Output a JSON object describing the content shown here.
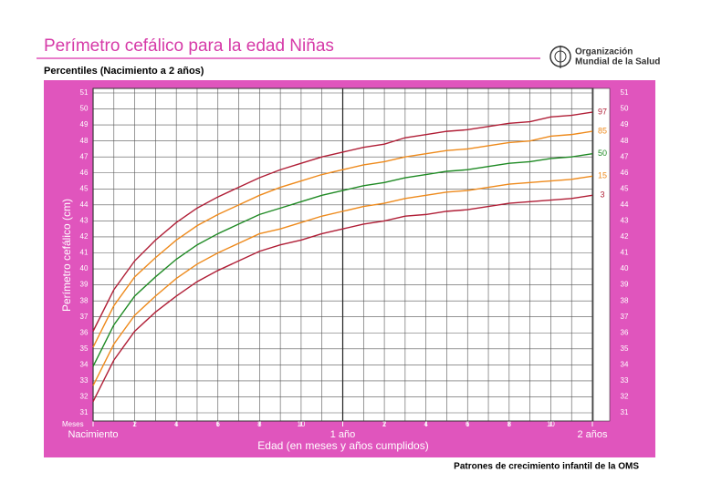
{
  "chart_data": {
    "type": "line",
    "title": "Perímetro cefálico para la edad  Niñas",
    "subtitle": "Percentiles (Nacimiento a 2 años)",
    "organization": [
      "Organización",
      "Mundial de la Salud"
    ],
    "footer": "Patrones de crecimiento infantil de la OMS",
    "x_label": "Edad (en meses y años cumplidos)",
    "x_unit_label": "Meses",
    "y_label": "Perímetro cefálico (cm)",
    "x": [
      0,
      1,
      2,
      3,
      4,
      5,
      6,
      7,
      8,
      9,
      10,
      11,
      12,
      13,
      14,
      15,
      16,
      17,
      18,
      19,
      20,
      21,
      22,
      23,
      24
    ],
    "series": [
      {
        "name": "97",
        "color": "#b01e36",
        "values": [
          36.1,
          38.7,
          40.5,
          41.8,
          42.9,
          43.8,
          44.5,
          45.1,
          45.7,
          46.2,
          46.6,
          47.0,
          47.3,
          47.6,
          47.8,
          48.2,
          48.4,
          48.6,
          48.7,
          48.9,
          49.1,
          49.2,
          49.5,
          49.6,
          49.8
        ]
      },
      {
        "name": "85",
        "color": "#ee8a1c",
        "values": [
          35.1,
          37.7,
          39.5,
          40.7,
          41.8,
          42.7,
          43.4,
          44.0,
          44.6,
          45.1,
          45.5,
          45.9,
          46.2,
          46.5,
          46.7,
          47.0,
          47.2,
          47.4,
          47.5,
          47.7,
          47.9,
          48.0,
          48.3,
          48.4,
          48.6
        ]
      },
      {
        "name": "50",
        "color": "#1f8a24",
        "values": [
          33.9,
          36.5,
          38.3,
          39.5,
          40.6,
          41.5,
          42.2,
          42.8,
          43.4,
          43.8,
          44.2,
          44.6,
          44.9,
          45.2,
          45.4,
          45.7,
          45.9,
          46.1,
          46.2,
          46.4,
          46.6,
          46.7,
          46.9,
          47.0,
          47.2
        ]
      },
      {
        "name": "15",
        "color": "#ee8a1c",
        "values": [
          32.7,
          35.3,
          37.1,
          38.3,
          39.4,
          40.3,
          41.0,
          41.6,
          42.2,
          42.5,
          42.9,
          43.3,
          43.6,
          43.9,
          44.1,
          44.4,
          44.6,
          44.8,
          44.9,
          45.1,
          45.3,
          45.4,
          45.5,
          45.6,
          45.8
        ]
      },
      {
        "name": "3",
        "color": "#b01e36",
        "values": [
          31.7,
          34.3,
          36.1,
          37.3,
          38.3,
          39.2,
          39.9,
          40.5,
          41.1,
          41.5,
          41.8,
          42.2,
          42.5,
          42.8,
          43.0,
          43.3,
          43.4,
          43.6,
          43.7,
          43.9,
          44.1,
          44.2,
          44.3,
          44.4,
          44.6
        ]
      }
    ],
    "xlim": [
      0,
      24
    ],
    "ylim": [
      31,
      51
    ],
    "xticks": [
      {
        "value": 0,
        "label": "Nacimiento"
      },
      2,
      4,
      6,
      8,
      10,
      {
        "value": 12,
        "label": "1 año"
      },
      {
        "value": 14,
        "label": "2"
      },
      {
        "value": 16,
        "label": "4"
      },
      {
        "value": 18,
        "label": "6"
      },
      {
        "value": 20,
        "label": "8"
      },
      {
        "value": 22,
        "label": "10"
      },
      {
        "value": 24,
        "label": "2 años"
      }
    ],
    "x_minor_ticks": [
      1,
      3,
      5,
      7,
      9,
      11,
      13,
      15,
      17,
      19,
      21,
      23
    ],
    "yticks": [
      31,
      32,
      33,
      34,
      35,
      36,
      37,
      38,
      39,
      40,
      41,
      42,
      43,
      44,
      45,
      46,
      47,
      48,
      49,
      50,
      51
    ],
    "grid": true
  }
}
